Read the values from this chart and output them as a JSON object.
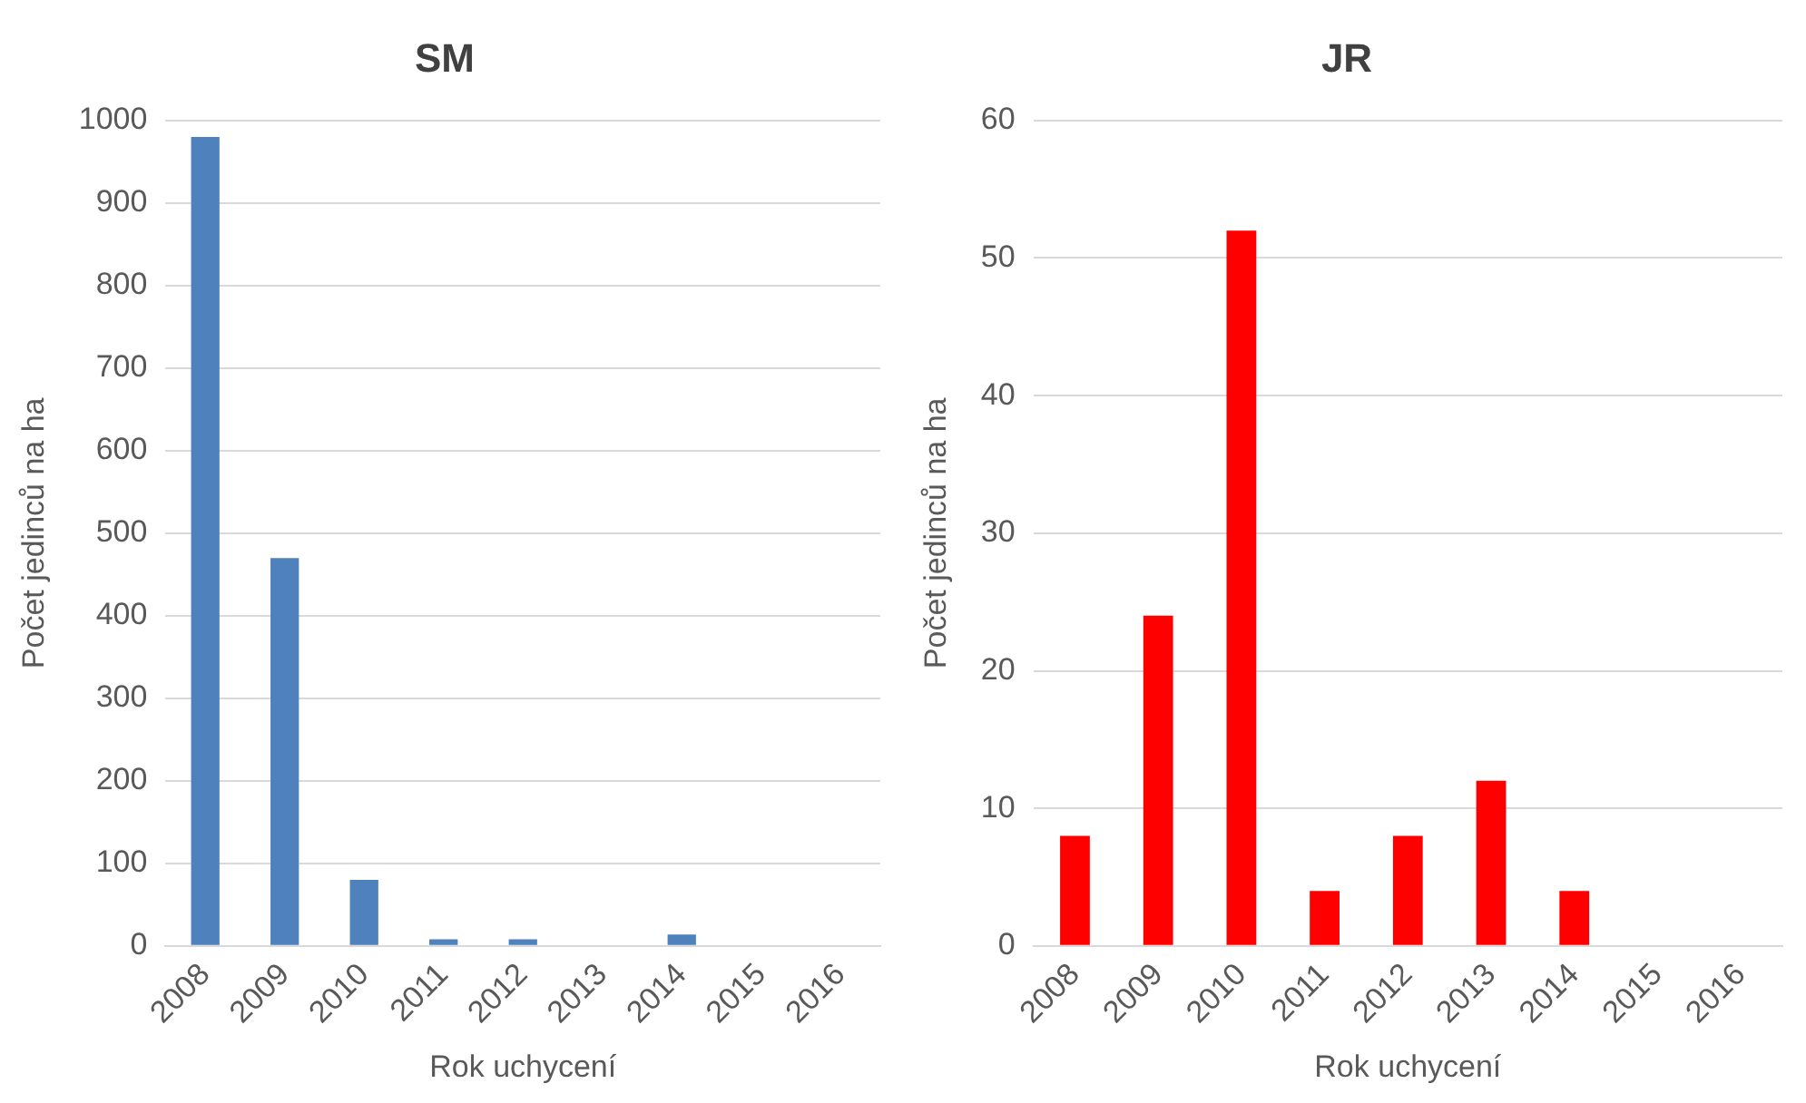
{
  "chart_data": [
    {
      "type": "bar",
      "title": "SM",
      "xlabel": "Rok uchycení",
      "ylabel": "Počet jedinců na ha",
      "categories": [
        "2008",
        "2009",
        "2010",
        "2011",
        "2012",
        "2013",
        "2014",
        "2015",
        "2016"
      ],
      "values": [
        980,
        470,
        80,
        8,
        8,
        0,
        14,
        0,
        0
      ],
      "color": "#4f81bd",
      "ylim": [
        0,
        1000
      ],
      "yticks": [
        0,
        100,
        200,
        300,
        400,
        500,
        600,
        700,
        800,
        900,
        1000
      ],
      "grid": "y"
    },
    {
      "type": "bar",
      "title": "JR",
      "xlabel": "Rok uchycení",
      "ylabel": "Počet jedinců na ha",
      "categories": [
        "2008",
        "2009",
        "2010",
        "2011",
        "2012",
        "2013",
        "2014",
        "2015",
        "2016"
      ],
      "values": [
        8,
        24,
        52,
        4,
        8,
        12,
        4,
        0,
        0
      ],
      "color": "#ff0000",
      "ylim": [
        0,
        60
      ],
      "yticks": [
        0,
        10,
        20,
        30,
        40,
        50,
        60
      ],
      "grid": "y"
    }
  ]
}
